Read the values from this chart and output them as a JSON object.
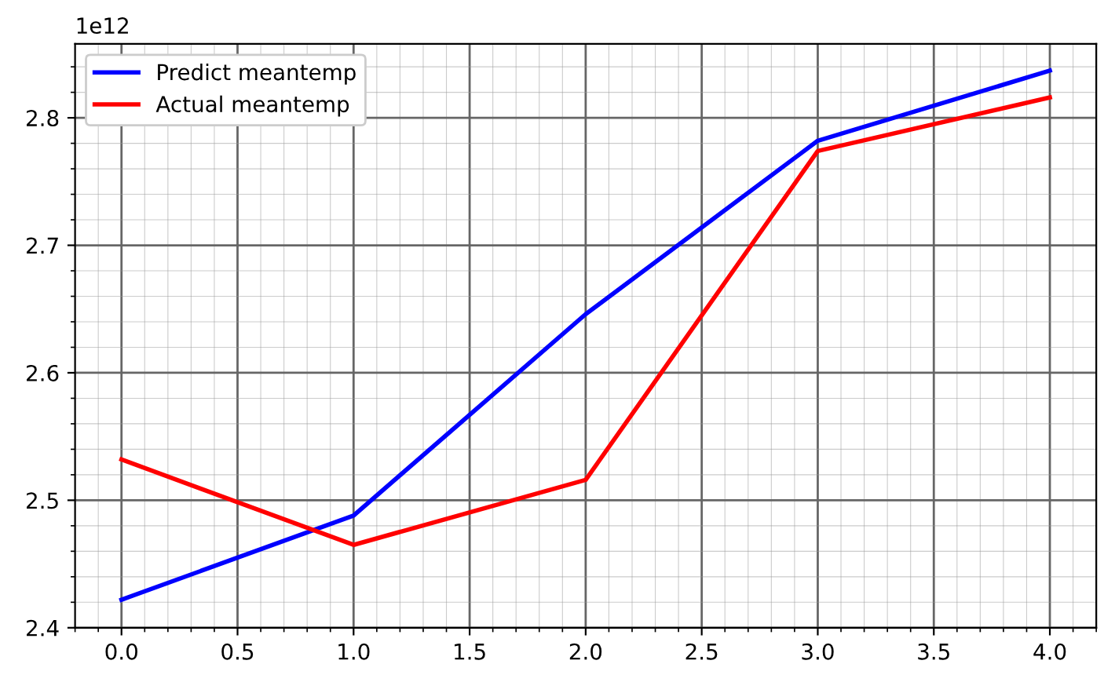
{
  "chart_data": {
    "type": "line",
    "x": [
      0,
      1,
      2,
      3,
      4
    ],
    "series": [
      {
        "name": "Predict meantemp",
        "color": "#0000ff",
        "values": [
          2.422,
          2.488,
          2.646,
          2.782,
          2.837
        ]
      },
      {
        "name": "Actual meantemp",
        "color": "#ff0000",
        "values": [
          2.532,
          2.465,
          2.516,
          2.774,
          2.816
        ]
      }
    ],
    "xlim": [
      -0.2,
      4.2
    ],
    "xticks": [
      {
        "value": 0,
        "label": "0.0"
      },
      {
        "value": 0.5,
        "label": "0.5"
      },
      {
        "value": 1,
        "label": "1.0"
      },
      {
        "value": 1.5,
        "label": "1.5"
      },
      {
        "value": 2,
        "label": "2.0"
      },
      {
        "value": 2.5,
        "label": "2.5"
      },
      {
        "value": 3,
        "label": "3.0"
      },
      {
        "value": 3.5,
        "label": "3.5"
      },
      {
        "value": 4,
        "label": "4.0"
      }
    ],
    "ylim": [
      2.4,
      2.858
    ],
    "yticks": [
      2.4,
      2.5,
      2.6,
      2.7,
      2.8
    ],
    "annotations": [
      "1e12"
    ],
    "grid": true,
    "legend": "top left",
    "marker": "none",
    "line_style": "solid"
  }
}
